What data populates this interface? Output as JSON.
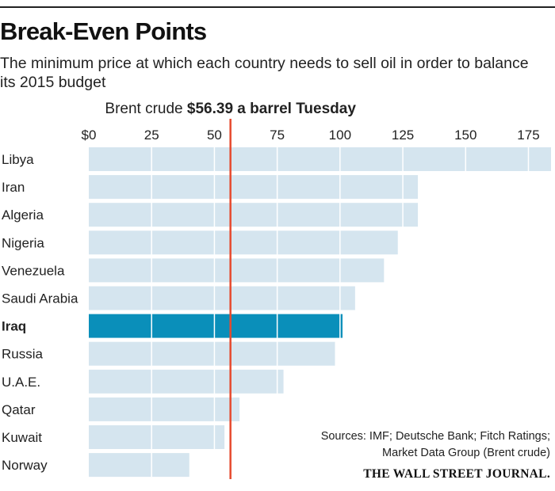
{
  "title": "Break-Even Points",
  "subtitle": "The minimum price at which each country needs to sell oil in order to balance its 2015 budget",
  "chart_data": {
    "type": "bar",
    "orientation": "horizontal",
    "categories": [
      "Libya",
      "Iran",
      "Algeria",
      "Nigeria",
      "Venezuela",
      "Saudi Arabia",
      "Iraq",
      "Russia",
      "U.A.E.",
      "Qatar",
      "Kuwait",
      "Norway"
    ],
    "values": [
      184,
      131,
      131,
      123,
      117.5,
      106,
      101,
      98,
      77.5,
      60,
      54,
      40
    ],
    "highlight": "Iraq",
    "xlim": [
      0,
      184
    ],
    "tick_values": [
      0,
      25,
      50,
      75,
      100,
      125,
      150,
      175
    ],
    "tick_labels": [
      "$0",
      "25",
      "50",
      "75",
      "100",
      "125",
      "150",
      "175"
    ],
    "reference_line": {
      "value": 56.39,
      "label_prefix": "Brent crude",
      "label_value": "$56.39 a barrel Tuesday"
    }
  },
  "footnote": {
    "line1": "Sources: IMF; Deutsche Bank; Fitch Ratings;",
    "line2": "Market Data Group (Brent crude)"
  },
  "brand": "THE WALL STREET JOURNAL.",
  "colors": {
    "bar": "#d5e5ef",
    "highlight_bar": "#0a8fba",
    "reference_line": "#e64a2e",
    "grid": "#ffffff"
  }
}
